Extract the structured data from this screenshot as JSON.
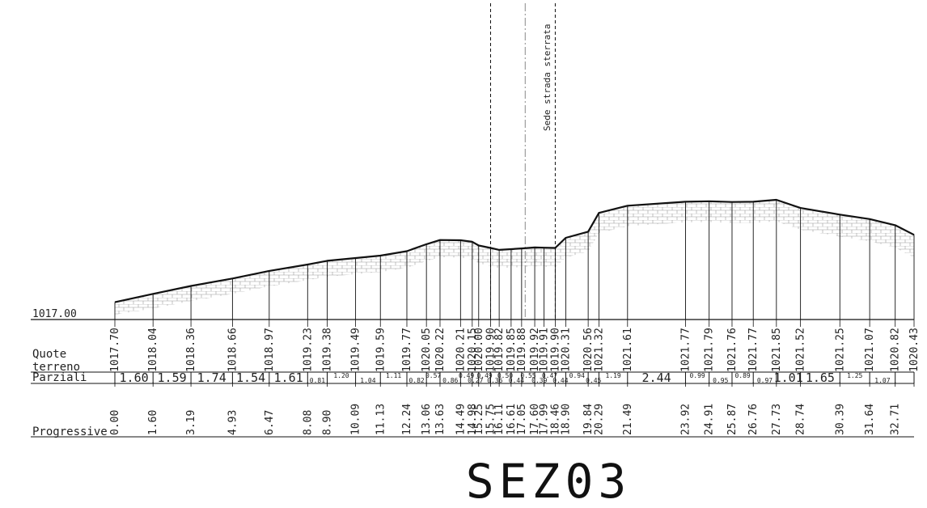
{
  "section_title": "SEZ03",
  "reference_elevation": "1017.00",
  "row_labels": {
    "quote_line1": "Quote",
    "quote_line2": "terreno",
    "parziali": "Parziali",
    "progressive": "Progressive"
  },
  "annotation": "Sede strada sterrata",
  "colors": {
    "line": "#111111",
    "hatch": "#9a9a9a",
    "text": "#222222"
  },
  "chart_data": {
    "type": "line",
    "title": "SEZ03",
    "xlabel": "Progressive",
    "ylabel": "Quote terreno",
    "datum": 1017.0,
    "points": [
      {
        "x": 0.0,
        "x_label": "0.00",
        "z": 1017.7,
        "z_label": "1017.70"
      },
      {
        "x": 1.6,
        "x_label": "1.60",
        "z": 1018.04,
        "z_label": "1018.04"
      },
      {
        "x": 3.19,
        "x_label": "3.19",
        "z": 1018.36,
        "z_label": "1018.36"
      },
      {
        "x": 4.93,
        "x_label": "4.93",
        "z": 1018.66,
        "z_label": "1018.66"
      },
      {
        "x": 6.47,
        "x_label": "6.47",
        "z": 1018.97,
        "z_label": "1018.97"
      },
      {
        "x": 8.08,
        "x_label": "8.08",
        "z": 1019.23,
        "z_label": "1019.23"
      },
      {
        "x": 8.9,
        "x_label": "8.90",
        "z": 1019.38,
        "z_label": "1019.38"
      },
      {
        "x": 10.09,
        "x_label": "10.09",
        "z": 1019.49,
        "z_label": "1019.49"
      },
      {
        "x": 11.13,
        "x_label": "11.13",
        "z": 1019.59,
        "z_label": "1019.59"
      },
      {
        "x": 12.24,
        "x_label": "12.24",
        "z": 1019.77,
        "z_label": "1019.77"
      },
      {
        "x": 13.06,
        "x_label": "13.06",
        "z": 1020.05,
        "z_label": "1020.05"
      },
      {
        "x": 13.63,
        "x_label": "13.63",
        "z": 1020.22,
        "z_label": "1020.22"
      },
      {
        "x": 14.49,
        "x_label": "14.49",
        "z": 1020.21,
        "z_label": "1020.21"
      },
      {
        "x": 14.98,
        "x_label": "14.98",
        "z": 1020.15,
        "z_label": "1020.15"
      },
      {
        "x": 15.25,
        "x_label": "15.25",
        "z": 1020.0,
        "z_label": "1020.00"
      },
      {
        "x": 15.75,
        "x_label": "15.75",
        "z": 1019.9,
        "z_label": "1019.90"
      },
      {
        "x": 16.11,
        "x_label": "16.11",
        "z": 1019.82,
        "z_label": "1019.82"
      },
      {
        "x": 16.61,
        "x_label": "16.61",
        "z": 1019.85,
        "z_label": "1019.85"
      },
      {
        "x": 17.05,
        "x_label": "17.05",
        "z": 1019.88,
        "z_label": "1019.88"
      },
      {
        "x": 17.6,
        "x_label": "17.60",
        "z": 1019.92,
        "z_label": "1019.92"
      },
      {
        "x": 17.99,
        "x_label": "17.99",
        "z": 1019.91,
        "z_label": "1019.91"
      },
      {
        "x": 18.46,
        "x_label": "18.46",
        "z": 1019.9,
        "z_label": "1019.90"
      },
      {
        "x": 18.9,
        "x_label": "18.90",
        "z": 1020.31,
        "z_label": "1020.31"
      },
      {
        "x": 19.84,
        "x_label": "19.84",
        "z": 1020.56,
        "z_label": "1020.56"
      },
      {
        "x": 20.29,
        "x_label": "20.29",
        "z": 1021.32,
        "z_label": "1021.32"
      },
      {
        "x": 21.49,
        "x_label": "21.49",
        "z": 1021.61,
        "z_label": "1021.61"
      },
      {
        "x": 23.92,
        "x_label": "23.92",
        "z": 1021.77,
        "z_label": "1021.77"
      },
      {
        "x": 24.91,
        "x_label": "24.91",
        "z": 1021.79,
        "z_label": "1021.79"
      },
      {
        "x": 25.87,
        "x_label": "25.87",
        "z": 1021.76,
        "z_label": "1021.76"
      },
      {
        "x": 26.76,
        "x_label": "26.76",
        "z": 1021.77,
        "z_label": "1021.77"
      },
      {
        "x": 27.73,
        "x_label": "27.73",
        "z": 1021.85,
        "z_label": "1021.85"
      },
      {
        "x": 28.74,
        "x_label": "28.74",
        "z": 1021.52,
        "z_label": "1021.52"
      },
      {
        "x": 30.39,
        "x_label": "30.39",
        "z": 1021.25,
        "z_label": "1021.25"
      },
      {
        "x": 31.64,
        "x_label": "31.64",
        "z": 1021.07,
        "z_label": "1021.07"
      },
      {
        "x": 32.71,
        "x_label": "32.71",
        "z": 1020.82,
        "z_label": "1020.82"
      },
      {
        "x": 33.5,
        "x_label": "",
        "z": 1020.43,
        "z_label": "1020.43"
      }
    ],
    "partials": [
      {
        "x_start": 0.0,
        "x_end": 1.6,
        "label": "1.60",
        "size": "big"
      },
      {
        "x_start": 1.6,
        "x_end": 3.19,
        "label": "1.59",
        "size": "big"
      },
      {
        "x_start": 3.19,
        "x_end": 4.93,
        "label": "1.74",
        "size": "big"
      },
      {
        "x_start": 4.93,
        "x_end": 6.47,
        "label": "1.54",
        "size": "big"
      },
      {
        "x_start": 6.47,
        "x_end": 8.08,
        "label": "1.61",
        "size": "big"
      },
      {
        "x_start": 8.08,
        "x_end": 8.9,
        "label": "0.81",
        "size": "small"
      },
      {
        "x_start": 8.9,
        "x_end": 10.09,
        "label": "1.20",
        "size": "small"
      },
      {
        "x_start": 10.09,
        "x_end": 11.13,
        "label": "1.04",
        "size": "small"
      },
      {
        "x_start": 11.13,
        "x_end": 12.24,
        "label": "1.11",
        "size": "small"
      },
      {
        "x_start": 12.24,
        "x_end": 13.06,
        "label": "0.82",
        "size": "small"
      },
      {
        "x_start": 13.06,
        "x_end": 13.63,
        "label": "0.57",
        "size": "small"
      },
      {
        "x_start": 13.63,
        "x_end": 14.49,
        "label": "0.86",
        "size": "small"
      },
      {
        "x_start": 14.49,
        "x_end": 14.98,
        "label": "0.49",
        "size": "small"
      },
      {
        "x_start": 14.98,
        "x_end": 15.25,
        "label": "0.27",
        "size": "small"
      },
      {
        "x_start": 15.25,
        "x_end": 15.75,
        "label": "0.49",
        "size": "small"
      },
      {
        "x_start": 15.75,
        "x_end": 16.11,
        "label": "0.36",
        "size": "small"
      },
      {
        "x_start": 16.11,
        "x_end": 16.61,
        "label": "0.50",
        "size": "small"
      },
      {
        "x_start": 16.61,
        "x_end": 17.05,
        "label": "0.44",
        "size": "small"
      },
      {
        "x_start": 17.05,
        "x_end": 17.6,
        "label": "0.55",
        "size": "small"
      },
      {
        "x_start": 17.6,
        "x_end": 17.99,
        "label": "0.39",
        "size": "small"
      },
      {
        "x_start": 17.99,
        "x_end": 18.46,
        "label": "0.47",
        "size": "small"
      },
      {
        "x_start": 18.46,
        "x_end": 18.9,
        "label": "0.44",
        "size": "small"
      },
      {
        "x_start": 18.9,
        "x_end": 19.84,
        "label": "0.94",
        "size": "small"
      },
      {
        "x_start": 19.84,
        "x_end": 20.29,
        "label": "0.45",
        "size": "small"
      },
      {
        "x_start": 20.29,
        "x_end": 21.49,
        "label": "1.19",
        "size": "small"
      },
      {
        "x_start": 21.49,
        "x_end": 23.92,
        "label": "2.44",
        "size": "big"
      },
      {
        "x_start": 23.92,
        "x_end": 24.91,
        "label": "0.99",
        "size": "small"
      },
      {
        "x_start": 24.91,
        "x_end": 25.87,
        "label": "0.95",
        "size": "small"
      },
      {
        "x_start": 25.87,
        "x_end": 26.76,
        "label": "0.89",
        "size": "small"
      },
      {
        "x_start": 26.76,
        "x_end": 27.73,
        "label": "0.97",
        "size": "small"
      },
      {
        "x_start": 27.73,
        "x_end": 28.74,
        "label": "1.01",
        "size": "big"
      },
      {
        "x_start": 28.74,
        "x_end": 30.39,
        "label": "1.65",
        "size": "big"
      },
      {
        "x_start": 30.39,
        "x_end": 31.64,
        "label": "1.25",
        "size": "small"
      },
      {
        "x_start": 31.64,
        "x_end": 32.71,
        "label": "1.07",
        "size": "small"
      }
    ],
    "guide_lines": [
      {
        "x": 15.75,
        "style": "dashed"
      },
      {
        "x": 17.2,
        "style": "dashdot"
      },
      {
        "x": 18.46,
        "style": "dashed"
      }
    ]
  }
}
